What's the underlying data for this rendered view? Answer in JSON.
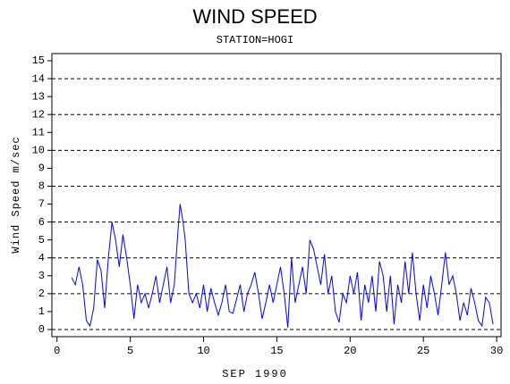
{
  "chart_data": {
    "type": "line",
    "title": "WIND SPEED",
    "subtitle": "STATION=HOGI",
    "x_label": "SEP 1990",
    "y_label": "Wind Speed m/sec",
    "xlim": [
      -0.35,
      30.3
    ],
    "xticks": [
      0,
      5,
      10,
      15,
      20,
      25,
      30
    ],
    "ylim": [
      -0.4,
      15.4
    ],
    "yticks": [
      0,
      1,
      2,
      3,
      4,
      5,
      6,
      7,
      8,
      9,
      10,
      11,
      12,
      13,
      14,
      15
    ],
    "grid": "dashed",
    "series": [
      {
        "color": "#0000ff",
        "x": [
          1.0,
          1.25,
          1.5,
          1.75,
          2.0,
          2.25,
          2.5,
          2.75,
          3.0,
          3.25,
          3.5,
          3.75,
          4.0,
          4.25,
          4.5,
          4.75,
          5.0,
          5.25,
          5.5,
          5.75,
          6.0,
          6.25,
          6.5,
          6.75,
          7.0,
          7.25,
          7.5,
          7.75,
          8.0,
          8.25,
          8.4,
          8.6,
          8.75,
          9.0,
          9.25,
          9.5,
          9.75,
          10.0,
          10.25,
          10.5,
          10.75,
          11.0,
          11.25,
          11.5,
          11.75,
          12.0,
          12.25,
          12.5,
          12.75,
          13.0,
          13.25,
          13.5,
          13.75,
          14.0,
          14.25,
          14.5,
          14.75,
          15.0,
          15.25,
          15.5,
          15.75,
          16.0,
          16.25,
          16.5,
          16.75,
          17.0,
          17.25,
          17.5,
          17.75,
          18.0,
          18.25,
          18.5,
          18.75,
          19.0,
          19.25,
          19.5,
          19.75,
          20.0,
          20.25,
          20.5,
          20.75,
          21.0,
          21.25,
          21.5,
          21.75,
          22.0,
          22.25,
          22.5,
          22.75,
          23.0,
          23.25,
          23.5,
          23.75,
          24.0,
          24.25,
          24.5,
          24.75,
          25.0,
          25.25,
          25.5,
          25.75,
          26.0,
          26.25,
          26.5,
          26.75,
          27.0,
          27.25,
          27.5,
          27.75,
          28.0,
          28.25,
          28.5,
          28.75,
          29.0,
          29.25,
          29.5,
          29.75
        ],
        "values": [
          2.9,
          2.5,
          3.5,
          2.5,
          0.5,
          0.2,
          1.2,
          3.9,
          3.3,
          1.2,
          4.0,
          6.0,
          5.0,
          3.5,
          5.3,
          4.0,
          2.5,
          0.6,
          2.5,
          1.5,
          2.0,
          1.2,
          2.0,
          3.0,
          1.5,
          2.5,
          3.5,
          1.5,
          2.5,
          5.5,
          7.0,
          6.0,
          5.0,
          2.0,
          1.5,
          2.0,
          1.2,
          2.5,
          1.0,
          2.3,
          1.5,
          0.8,
          1.5,
          2.5,
          1.0,
          0.9,
          1.7,
          2.5,
          1.0,
          2.0,
          2.5,
          3.2,
          2.0,
          0.6,
          1.5,
          2.5,
          1.5,
          2.5,
          3.5,
          2.0,
          0.1,
          4.0,
          1.5,
          2.5,
          3.5,
          2.0,
          5.0,
          4.5,
          3.5,
          2.5,
          4.2,
          2.0,
          3.0,
          1.0,
          0.4,
          2.0,
          1.5,
          3.0,
          2.0,
          3.2,
          0.5,
          2.5,
          1.5,
          3.0,
          1.0,
          3.8,
          3.0,
          1.0,
          3.0,
          0.3,
          2.5,
          1.5,
          3.8,
          2.0,
          4.3,
          2.0,
          0.5,
          2.5,
          1.2,
          3.0,
          2.0,
          0.8,
          2.5,
          4.3,
          2.5,
          3.0,
          2.0,
          0.5,
          1.5,
          0.8,
          2.3,
          1.5,
          0.5,
          0.2,
          1.8,
          1.5,
          0.3
        ]
      }
    ]
  }
}
